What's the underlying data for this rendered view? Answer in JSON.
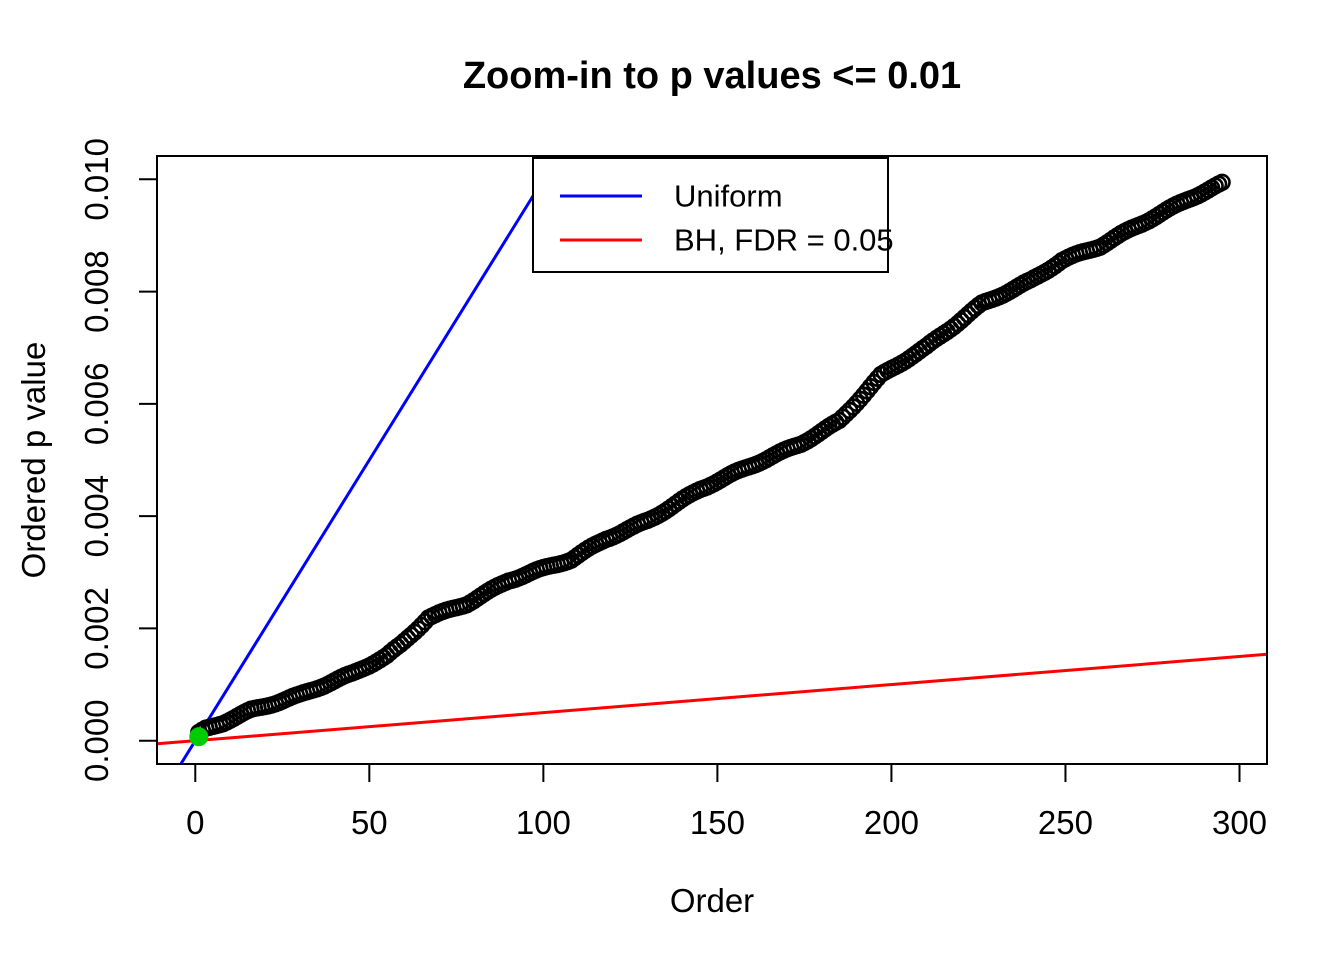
{
  "chart_data": {
    "type": "scatter",
    "title": "Zoom-in to p values <= 0.01",
    "xlabel": "Order",
    "ylabel": "Ordered p value",
    "xlim": [
      -11.0,
      307.9
    ],
    "ylim": [
      -0.000415,
      0.010415
    ],
    "x_ticks": [
      0,
      50,
      100,
      150,
      200,
      250,
      300
    ],
    "x_tick_labels": [
      "0",
      "50",
      "100",
      "150",
      "200",
      "250",
      "300"
    ],
    "y_ticks": [
      0.0,
      0.002,
      0.004,
      0.006,
      0.008,
      0.01
    ],
    "y_tick_labels": [
      "0.000",
      "0.002",
      "0.004",
      "0.006",
      "0.008",
      "0.010"
    ],
    "grid": false,
    "n_points": 295,
    "point_color": "#000000",
    "points_anchors": [
      [
        1,
        0.00012
      ],
      [
        3,
        0.0002
      ],
      [
        8,
        0.00032
      ],
      [
        16,
        0.00055
      ],
      [
        30,
        0.00082
      ],
      [
        45,
        0.00118
      ],
      [
        55,
        0.0015
      ],
      [
        59,
        0.0017
      ],
      [
        67,
        0.0022
      ],
      [
        78,
        0.00245
      ],
      [
        90,
        0.00285
      ],
      [
        108,
        0.00322
      ],
      [
        118,
        0.0036
      ],
      [
        130,
        0.00393
      ],
      [
        145,
        0.00447
      ],
      [
        160,
        0.0049
      ],
      [
        174,
        0.0053
      ],
      [
        185,
        0.0057
      ],
      [
        197,
        0.0065
      ],
      [
        210,
        0.007
      ],
      [
        226,
        0.00779
      ],
      [
        240,
        0.0082
      ],
      [
        249,
        0.00855
      ],
      [
        260,
        0.0088
      ],
      [
        270,
        0.00915
      ],
      [
        285,
        0.00965
      ],
      [
        295,
        0.00993
      ]
    ],
    "lines": [
      {
        "name": "Uniform",
        "color": "#0000FF",
        "slope": 0.0001,
        "intercept": 0
      },
      {
        "name": "BH, FDR = 0.05",
        "color": "#FF0000",
        "slope": 5e-06,
        "intercept": 0
      }
    ],
    "highlight_point": {
      "x": 1,
      "y": 7e-05,
      "color": "#00CC00"
    },
    "legend": {
      "position": "top-inside",
      "entries": [
        {
          "label": "Uniform",
          "color": "#0000FF"
        },
        {
          "label": "BH, FDR = 0.05",
          "color": "#FF0000"
        }
      ]
    }
  }
}
